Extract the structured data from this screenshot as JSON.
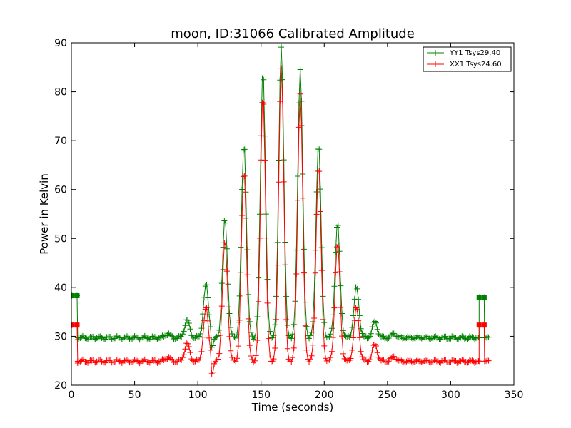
{
  "chart_data": {
    "type": "line",
    "title": "moon, ID:31066 Calibrated Amplitude",
    "xlabel": "Time (seconds)",
    "ylabel": "Power in Kelvin",
    "xlim": [
      0,
      350
    ],
    "ylim": [
      20,
      90
    ],
    "xticks": [
      "0",
      "50",
      "100",
      "150",
      "200",
      "250",
      "300",
      "350"
    ],
    "yticks": [
      "20",
      "30",
      "40",
      "50",
      "60",
      "70",
      "80",
      "90"
    ],
    "legend_position": "top-right",
    "grid": false,
    "series": [
      {
        "name": "YY1 Tsys29.40",
        "color": "#008000",
        "marker": "plus",
        "baseline": 29.7,
        "start": [
          [
            0.5,
            38.3
          ],
          [
            4.5,
            38.3
          ]
        ],
        "end": [
          [
            322.5,
            38.0
          ],
          [
            326.5,
            38.0
          ]
        ],
        "x_range": [
          5,
          330
        ],
        "peaks": [
          {
            "x": 76,
            "y": 30.5
          },
          {
            "x": 91.5,
            "y": 33.3
          },
          {
            "x": 106.5,
            "y": 40.5
          },
          {
            "x": 121.5,
            "y": 54.0
          },
          {
            "x": 136.5,
            "y": 69.5
          },
          {
            "x": 151.5,
            "y": 84.5
          },
          {
            "x": 166,
            "y": 89.5
          },
          {
            "x": 181,
            "y": 84.5
          },
          {
            "x": 195.5,
            "y": 69.5
          },
          {
            "x": 210.5,
            "y": 53.0
          },
          {
            "x": 225.5,
            "y": 40.0
          },
          {
            "x": 240,
            "y": 33.0
          },
          {
            "x": 255,
            "y": 30.5
          }
        ],
        "dips": [
          {
            "x": 111.5,
            "y": 27.8
          }
        ]
      },
      {
        "name": "XX1 Tsys24.60",
        "color": "#ff0000",
        "marker": "plus",
        "baseline": 24.9,
        "start": [
          [
            0.5,
            32.3
          ],
          [
            4.5,
            32.3
          ]
        ],
        "end": [
          [
            322.5,
            32.3
          ],
          [
            326.5,
            32.3
          ]
        ],
        "x_range": [
          5,
          330
        ],
        "peaks": [
          {
            "x": 76,
            "y": 25.7
          },
          {
            "x": 91.5,
            "y": 28.5
          },
          {
            "x": 106.5,
            "y": 35.8
          },
          {
            "x": 121.5,
            "y": 49.5
          },
          {
            "x": 136.5,
            "y": 64.0
          },
          {
            "x": 151.5,
            "y": 79.5
          },
          {
            "x": 166,
            "y": 85.2
          },
          {
            "x": 181,
            "y": 79.5
          },
          {
            "x": 195.5,
            "y": 65.0
          },
          {
            "x": 210.5,
            "y": 49.0
          },
          {
            "x": 225.5,
            "y": 35.8
          },
          {
            "x": 240,
            "y": 28.3
          },
          {
            "x": 255,
            "y": 25.8
          }
        ],
        "dips": [
          {
            "x": 111.5,
            "y": 22.3
          }
        ]
      }
    ]
  }
}
